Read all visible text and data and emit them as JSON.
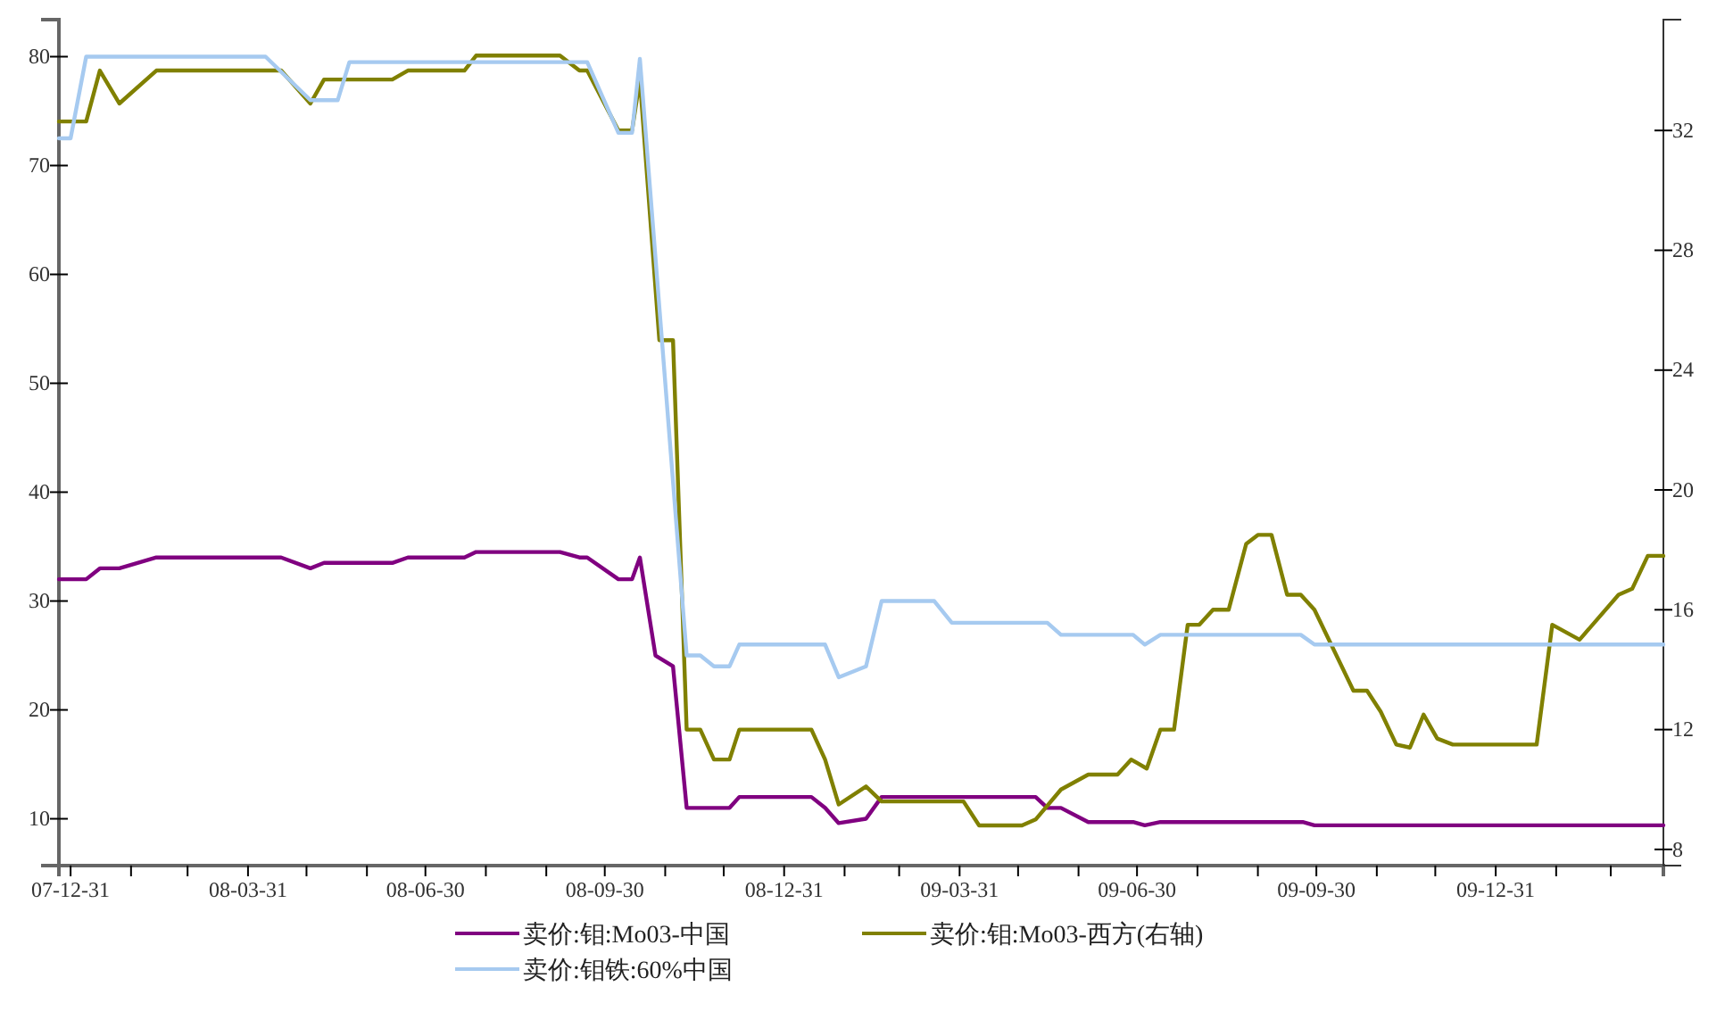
{
  "chart_data": {
    "type": "line",
    "legend": "bottom",
    "grid": false,
    "marker": "none",
    "line_style": "solid",
    "xlim": [
      "2007-12-25",
      "2010-03-27"
    ],
    "xticks": [
      {
        "value": "2007-12-31",
        "label": "07-12-31"
      },
      {
        "value": "2008-01-31",
        "label": null
      },
      {
        "value": "2008-02-29",
        "label": null
      },
      {
        "value": "2008-03-31",
        "label": "08-03-31"
      },
      {
        "value": "2008-04-30",
        "label": null
      },
      {
        "value": "2008-05-31",
        "label": null
      },
      {
        "value": "2008-06-30",
        "label": "08-06-30"
      },
      {
        "value": "2008-07-31",
        "label": null
      },
      {
        "value": "2008-08-31",
        "label": null
      },
      {
        "value": "2008-09-30",
        "label": "08-09-30"
      },
      {
        "value": "2008-10-31",
        "label": null
      },
      {
        "value": "2008-11-30",
        "label": null
      },
      {
        "value": "2008-12-31",
        "label": "08-12-31"
      },
      {
        "value": "2009-01-31",
        "label": null
      },
      {
        "value": "2009-02-28",
        "label": null
      },
      {
        "value": "2009-03-31",
        "label": "09-03-31"
      },
      {
        "value": "2009-04-30",
        "label": null
      },
      {
        "value": "2009-05-31",
        "label": null
      },
      {
        "value": "2009-06-30",
        "label": "09-06-30"
      },
      {
        "value": "2009-07-31",
        "label": null
      },
      {
        "value": "2009-08-31",
        "label": null
      },
      {
        "value": "2009-09-30",
        "label": "09-09-30"
      },
      {
        "value": "2009-10-31",
        "label": null
      },
      {
        "value": "2009-11-30",
        "label": null
      },
      {
        "value": "2009-12-31",
        "label": "09-12-31"
      },
      {
        "value": "2010-01-31",
        "label": null
      },
      {
        "value": "2010-02-28",
        "label": null
      }
    ],
    "ylim": [
      5.7,
      83.4
    ],
    "yticks": [
      10,
      20,
      30,
      40,
      50,
      60,
      70,
      80
    ],
    "y2lim": [
      7.46,
      35.7
    ],
    "y2ticks": [
      8,
      12,
      16,
      20,
      24,
      28,
      32
    ],
    "series": [
      {
        "name": "卖价:钼:Mo03-中国",
        "color": "#800080",
        "x": [
          "2007-12-25",
          "2008-01-08",
          "2008-01-15",
          "2008-01-25",
          "2008-02-13",
          "2008-04-17",
          "2008-05-02",
          "2008-05-09",
          "2008-06-13",
          "2008-06-21",
          "2008-07-20",
          "2008-07-26",
          "2008-09-07",
          "2008-09-17",
          "2008-09-21",
          "2008-10-07",
          "2008-10-14",
          "2008-10-18",
          "2008-10-26",
          "2008-11-04",
          "2008-11-11",
          "2008-12-03",
          "2008-12-08",
          "2009-01-14",
          "2009-01-21",
          "2009-01-28",
          "2009-02-11",
          "2009-02-19",
          "2009-05-09",
          "2009-05-15",
          "2009-05-22",
          "2009-06-05",
          "2009-06-28",
          "2009-07-04",
          "2009-07-12",
          "2009-09-23",
          "2009-09-29",
          "2010-03-27"
        ],
        "values": [
          32,
          32,
          33,
          33,
          34,
          34,
          33,
          33.5,
          33.5,
          34,
          34,
          34.5,
          34.5,
          34,
          34,
          32,
          32,
          34,
          25,
          24,
          11,
          11,
          12,
          12,
          11,
          9.6,
          10,
          12,
          12,
          11,
          11,
          9.7,
          9.7,
          9.4,
          9.7,
          9.7,
          9.4,
          9.4
        ]
      },
      {
        "name": "卖价:钼:Mo03-西方(右轴)",
        "color": "#808000",
        "axis": "y2",
        "x": [
          "2007-12-25",
          "2008-01-08",
          "2008-01-15",
          "2008-01-25",
          "2008-02-13",
          "2008-04-17",
          "2008-05-02",
          "2008-05-09",
          "2008-06-13",
          "2008-06-21",
          "2008-07-20",
          "2008-07-26",
          "2008-09-07",
          "2008-09-17",
          "2008-09-21",
          "2008-10-07",
          "2008-10-14",
          "2008-10-18",
          "2008-10-28",
          "2008-11-04",
          "2008-11-11",
          "2008-11-18",
          "2008-11-25",
          "2008-12-03",
          "2008-12-08",
          "2009-01-14",
          "2009-01-21",
          "2009-01-28",
          "2009-02-11",
          "2009-02-19",
          "2009-04-02",
          "2009-04-10",
          "2009-05-02",
          "2009-05-09",
          "2009-05-22",
          "2009-06-05",
          "2009-06-20",
          "2009-06-27",
          "2009-07-05",
          "2009-07-12",
          "2009-07-19",
          "2009-07-26",
          "2009-08-01",
          "2009-08-08",
          "2009-08-16",
          "2009-08-25",
          "2009-08-31",
          "2009-09-07",
          "2009-09-15",
          "2009-09-22",
          "2009-09-29",
          "2009-10-19",
          "2009-10-26",
          "2009-11-02",
          "2009-11-10",
          "2009-11-17",
          "2009-11-24",
          "2009-12-01",
          "2009-12-09",
          "2010-01-21",
          "2010-01-29",
          "2010-02-12",
          "2010-03-04",
          "2010-03-11",
          "2010-03-19",
          "2010-03-27"
        ],
        "values": [
          32.3,
          32.3,
          34,
          32.9,
          34,
          34,
          32.9,
          33.7,
          33.7,
          34,
          34,
          34.5,
          34.5,
          34,
          34,
          32,
          32,
          33.7,
          25,
          25,
          12,
          12,
          11,
          11,
          12,
          12,
          11,
          9.5,
          10.1,
          9.6,
          9.6,
          8.8,
          8.8,
          9,
          10,
          10.5,
          10.5,
          11,
          10.7,
          12,
          12,
          15.5,
          15.5,
          16,
          16,
          18.2,
          18.5,
          18.5,
          16.5,
          16.5,
          16,
          13.3,
          13.3,
          12.6,
          11.5,
          11.4,
          12.5,
          11.7,
          11.5,
          11.5,
          15.5,
          15,
          16.5,
          16.7,
          17.8,
          17.8
        ]
      },
      {
        "name": "卖价:钼铁:60%中国",
        "color": "#a6caf0",
        "x": [
          "2007-12-25",
          "2007-12-31",
          "2008-01-08",
          "2008-04-09",
          "2008-05-02",
          "2008-05-16",
          "2008-05-22",
          "2008-09-21",
          "2008-10-07",
          "2008-10-14",
          "2008-10-18",
          "2008-11-11",
          "2008-11-18",
          "2008-11-25",
          "2008-12-03",
          "2008-12-08",
          "2009-01-21",
          "2009-01-28",
          "2009-02-11",
          "2009-02-19",
          "2009-03-18",
          "2009-03-27",
          "2009-05-15",
          "2009-05-22",
          "2009-06-28",
          "2009-07-04",
          "2009-07-12",
          "2009-09-22",
          "2009-09-29",
          "2010-03-27"
        ],
        "values": [
          72.5,
          72.5,
          80,
          80,
          76,
          76,
          79.5,
          79.5,
          73,
          73,
          79.8,
          25,
          25,
          24,
          24,
          26,
          26,
          23,
          24,
          30,
          30,
          28,
          28,
          26.9,
          26.9,
          26,
          26.9,
          26.9,
          26,
          26
        ]
      }
    ]
  }
}
